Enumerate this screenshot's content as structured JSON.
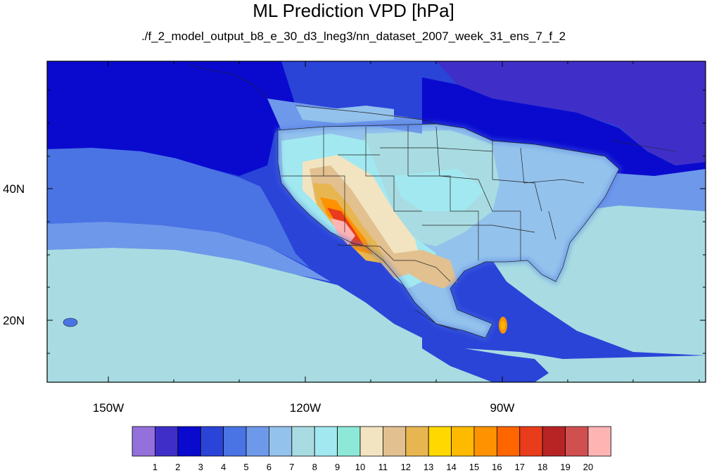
{
  "title": "ML Prediction VPD [hPa]",
  "subtitle": "./f_2_model_output_b8_e_30_d3_lneg3/nn_dataset_2007_week_31_ens_7_f_2",
  "lat_labels": [
    "40N",
    "20N"
  ],
  "lon_labels": [
    "150W",
    "120W",
    "90W"
  ],
  "colorbar": {
    "labels": [
      "1",
      "2",
      "3",
      "4",
      "5",
      "6",
      "7",
      "8",
      "9",
      "10",
      "11",
      "12",
      "13",
      "14",
      "15",
      "16",
      "17",
      "18",
      "19",
      "20"
    ],
    "colors": [
      "#9370DB",
      "#3F2FC8",
      "#0A0ACF",
      "#2A44D8",
      "#4A74E4",
      "#6E98EA",
      "#93C2EC",
      "#A8DCE2",
      "#A2E8F0",
      "#8EE8D8",
      "#F2E4C0",
      "#E2C090",
      "#E8B650",
      "#FFD800",
      "#FFBA00",
      "#FF9200",
      "#FF6600",
      "#E83C1C",
      "#B82424",
      "#D05050",
      "#FFB4B4"
    ]
  },
  "map_colors": {
    "ocean_deep": "#0A0ACF",
    "ocean_mid": "#2A44D8",
    "ocean_light": "#4A74E4",
    "pacific_subtrop": "#A8DCE2",
    "canada_north": "#3F2FC8"
  }
}
